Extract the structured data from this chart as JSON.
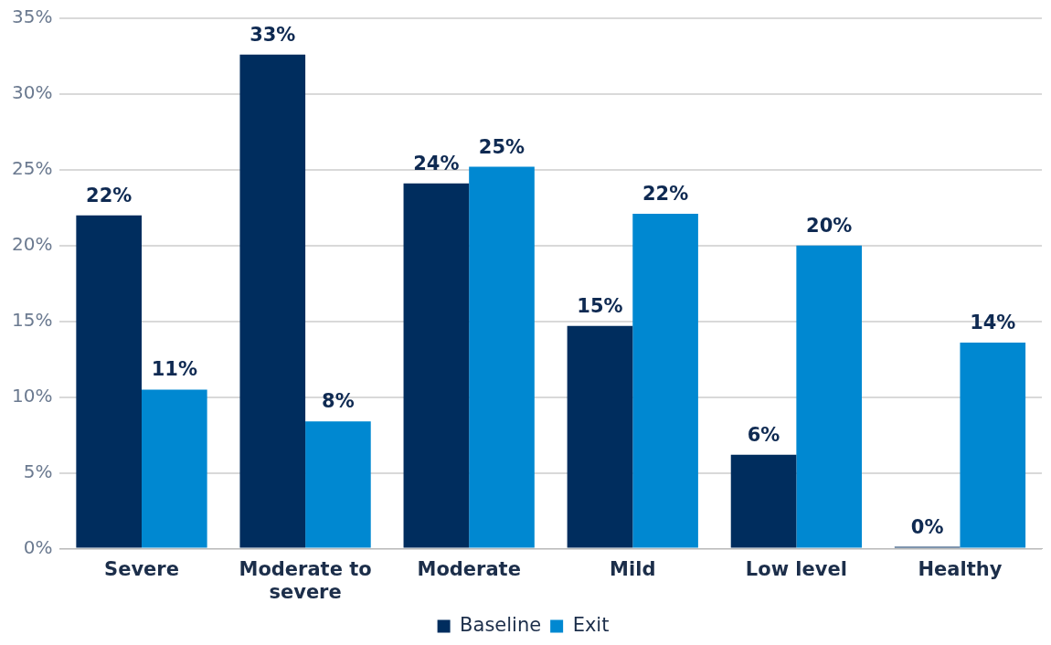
{
  "chart_data": {
    "type": "bar",
    "categories": [
      "Severe",
      "Moderate to severe",
      "Moderate",
      "Mild",
      "Low level",
      "Healthy"
    ],
    "series": [
      {
        "name": "Baseline",
        "color": "#002d5e",
        "values": [
          22,
          32.6,
          24.1,
          14.7,
          6.2,
          0
        ],
        "value_labels": [
          "22%",
          "33%",
          "24%",
          "15%",
          "6%",
          "0%"
        ]
      },
      {
        "name": "Exit",
        "color": "#0088d1",
        "values": [
          10.5,
          8.4,
          25.2,
          22.1,
          20,
          13.6
        ],
        "value_labels": [
          "11%",
          "8%",
          "25%",
          "22%",
          "20%",
          "14%"
        ]
      }
    ],
    "ylim": [
      0,
      35
    ],
    "yticks": [
      {
        "value": 0,
        "label": "0%"
      },
      {
        "value": 5,
        "label": "5%"
      },
      {
        "value": 10,
        "label": "10%"
      },
      {
        "value": 15,
        "label": "15%"
      },
      {
        "value": 20,
        "label": "20%"
      },
      {
        "value": 25,
        "label": "25%"
      },
      {
        "value": 30,
        "label": "30%"
      },
      {
        "value": 35,
        "label": "35%"
      }
    ],
    "grid": "y",
    "legend": "bottom"
  }
}
